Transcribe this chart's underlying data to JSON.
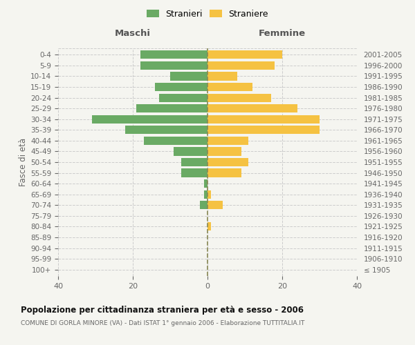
{
  "age_groups": [
    "100+",
    "95-99",
    "90-94",
    "85-89",
    "80-84",
    "75-79",
    "70-74",
    "65-69",
    "60-64",
    "55-59",
    "50-54",
    "45-49",
    "40-44",
    "35-39",
    "30-34",
    "25-29",
    "20-24",
    "15-19",
    "10-14",
    "5-9",
    "0-4"
  ],
  "birth_years": [
    "≤ 1905",
    "1906-1910",
    "1911-1915",
    "1916-1920",
    "1921-1925",
    "1926-1930",
    "1931-1935",
    "1936-1940",
    "1941-1945",
    "1946-1950",
    "1951-1955",
    "1956-1960",
    "1961-1965",
    "1966-1970",
    "1971-1975",
    "1976-1980",
    "1981-1985",
    "1986-1990",
    "1991-1995",
    "1996-2000",
    "2001-2005"
  ],
  "males": [
    0,
    0,
    0,
    0,
    0,
    0,
    2,
    1,
    1,
    7,
    7,
    9,
    17,
    22,
    31,
    19,
    13,
    14,
    10,
    18,
    18
  ],
  "females": [
    0,
    0,
    0,
    0,
    1,
    0,
    4,
    1,
    0,
    9,
    11,
    9,
    11,
    30,
    30,
    24,
    17,
    12,
    8,
    18,
    20
  ],
  "male_color": "#6aaa64",
  "female_color": "#f5c242",
  "background_color": "#f5f5f0",
  "grid_color": "#cccccc",
  "dashed_line_color": "#888855",
  "xlim": 40,
  "title": "Popolazione per cittadinanza straniera per età e sesso - 2006",
  "subtitle": "COMUNE DI GORLA MINORE (VA) - Dati ISTAT 1° gennaio 2006 - Elaborazione TUTTITALIA.IT",
  "xlabel_left": "Maschi",
  "xlabel_right": "Femmine",
  "ylabel_left": "Fasce di età",
  "legend_male": "Stranieri",
  "legend_female": "Straniere",
  "bar_height": 0.78
}
